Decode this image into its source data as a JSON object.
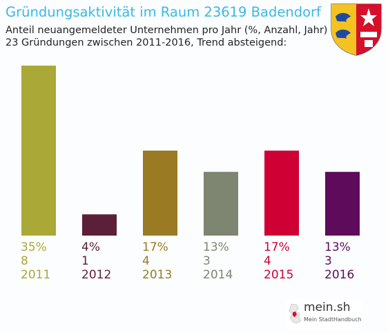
{
  "title": "Gründungsaktivität im Raum 23619 Badendorf",
  "subtitle_lines": [
    "Anteil neuangemeldeter Unternehmen pro Jahr (%, Anzahl, Jahr)",
    "23 Gründungen zwischen 2011-2016, Trend absteigend:"
  ],
  "logo": {
    "name": "mein.sh",
    "tagline": "Mein StadtHandbuch"
  },
  "crest_icon": "schleswig-holstein-coat-of-arms-icon",
  "chart_data": {
    "type": "bar",
    "categories": [
      "2011",
      "2012",
      "2013",
      "2014",
      "2015",
      "2016"
    ],
    "values": [
      8,
      1,
      4,
      3,
      4,
      3
    ],
    "percent_labels": [
      "35%",
      "4%",
      "17%",
      "13%",
      "17%",
      "13%"
    ],
    "colors": [
      "#aaa837",
      "#5c1f38",
      "#9a7a22",
      "#7e8570",
      "#cf0033",
      "#5e0b5c"
    ],
    "grid": false,
    "legend": "none"
  }
}
